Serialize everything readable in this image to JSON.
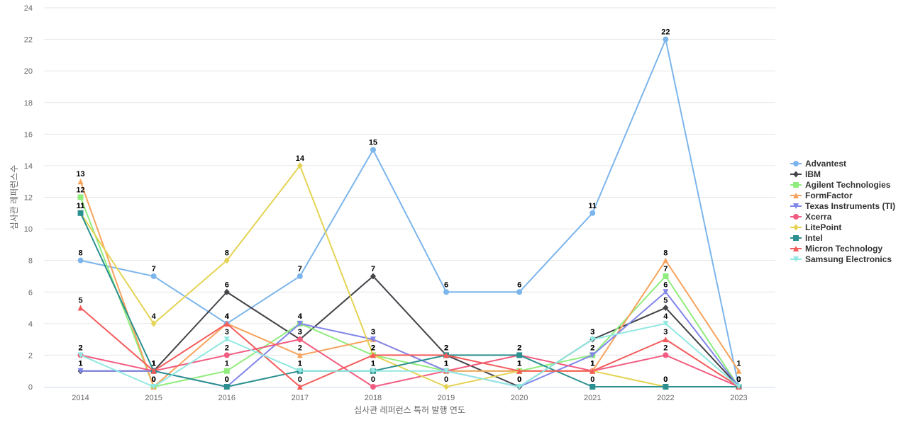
{
  "chart_data": {
    "type": "line",
    "xlabel": "심사관 레퍼런스 특허 발행 연도",
    "ylabel": "심사관 레퍼런스수",
    "x": [
      "2014",
      "2015",
      "2016",
      "2017",
      "2018",
      "2019",
      "2020",
      "2021",
      "2022",
      "2023"
    ],
    "ylim": [
      0,
      24
    ],
    "yticks": [
      0,
      2,
      4,
      6,
      8,
      10,
      12,
      14,
      16,
      18,
      20,
      22,
      24
    ],
    "grid": true,
    "legend_position": "right",
    "series": [
      {
        "name": "Advantest",
        "color": "#7cb5ec",
        "marker": "circle",
        "values": [
          8,
          7,
          4,
          7,
          15,
          6,
          6,
          11,
          22,
          0
        ]
      },
      {
        "name": "IBM",
        "color": "#434348",
        "marker": "diamond",
        "values": [
          1,
          1,
          6,
          3,
          7,
          2,
          0,
          3,
          5,
          0
        ]
      },
      {
        "name": "Agilent Technologies",
        "color": "#90ed7d",
        "marker": "square",
        "values": [
          12,
          0,
          1,
          4,
          2,
          1,
          1,
          2,
          7,
          0
        ]
      },
      {
        "name": "FormFactor",
        "color": "#f7a35c",
        "marker": "triangle",
        "values": [
          13,
          0,
          4,
          2,
          3,
          1,
          1,
          1,
          8,
          1
        ]
      },
      {
        "name": "Texas Instruments (TI)",
        "color": "#8085e9",
        "marker": "triangle-down",
        "values": [
          1,
          1,
          0,
          4,
          3,
          1,
          0,
          2,
          6,
          0
        ]
      },
      {
        "name": "Xcerra",
        "color": "#f15c80",
        "marker": "circle",
        "values": [
          2,
          1,
          2,
          3,
          0,
          1,
          2,
          1,
          2,
          0
        ]
      },
      {
        "name": "LitePoint",
        "color": "#e4d354",
        "marker": "diamond",
        "values": [
          11,
          4,
          8,
          14,
          2,
          0,
          1,
          1,
          0,
          0
        ]
      },
      {
        "name": "Intel",
        "color": "#2b908f",
        "marker": "square",
        "values": [
          11,
          1,
          0,
          1,
          1,
          2,
          2,
          0,
          0,
          0
        ]
      },
      {
        "name": "Micron Technology",
        "color": "#f45b5b",
        "marker": "triangle",
        "values": [
          5,
          1,
          4,
          0,
          2,
          2,
          1,
          1,
          3,
          0
        ]
      },
      {
        "name": "Samsung Electronics",
        "color": "#91e8e1",
        "marker": "triangle-down",
        "values": [
          2,
          0,
          3,
          1,
          1,
          1,
          0,
          3,
          4,
          0
        ]
      }
    ]
  }
}
